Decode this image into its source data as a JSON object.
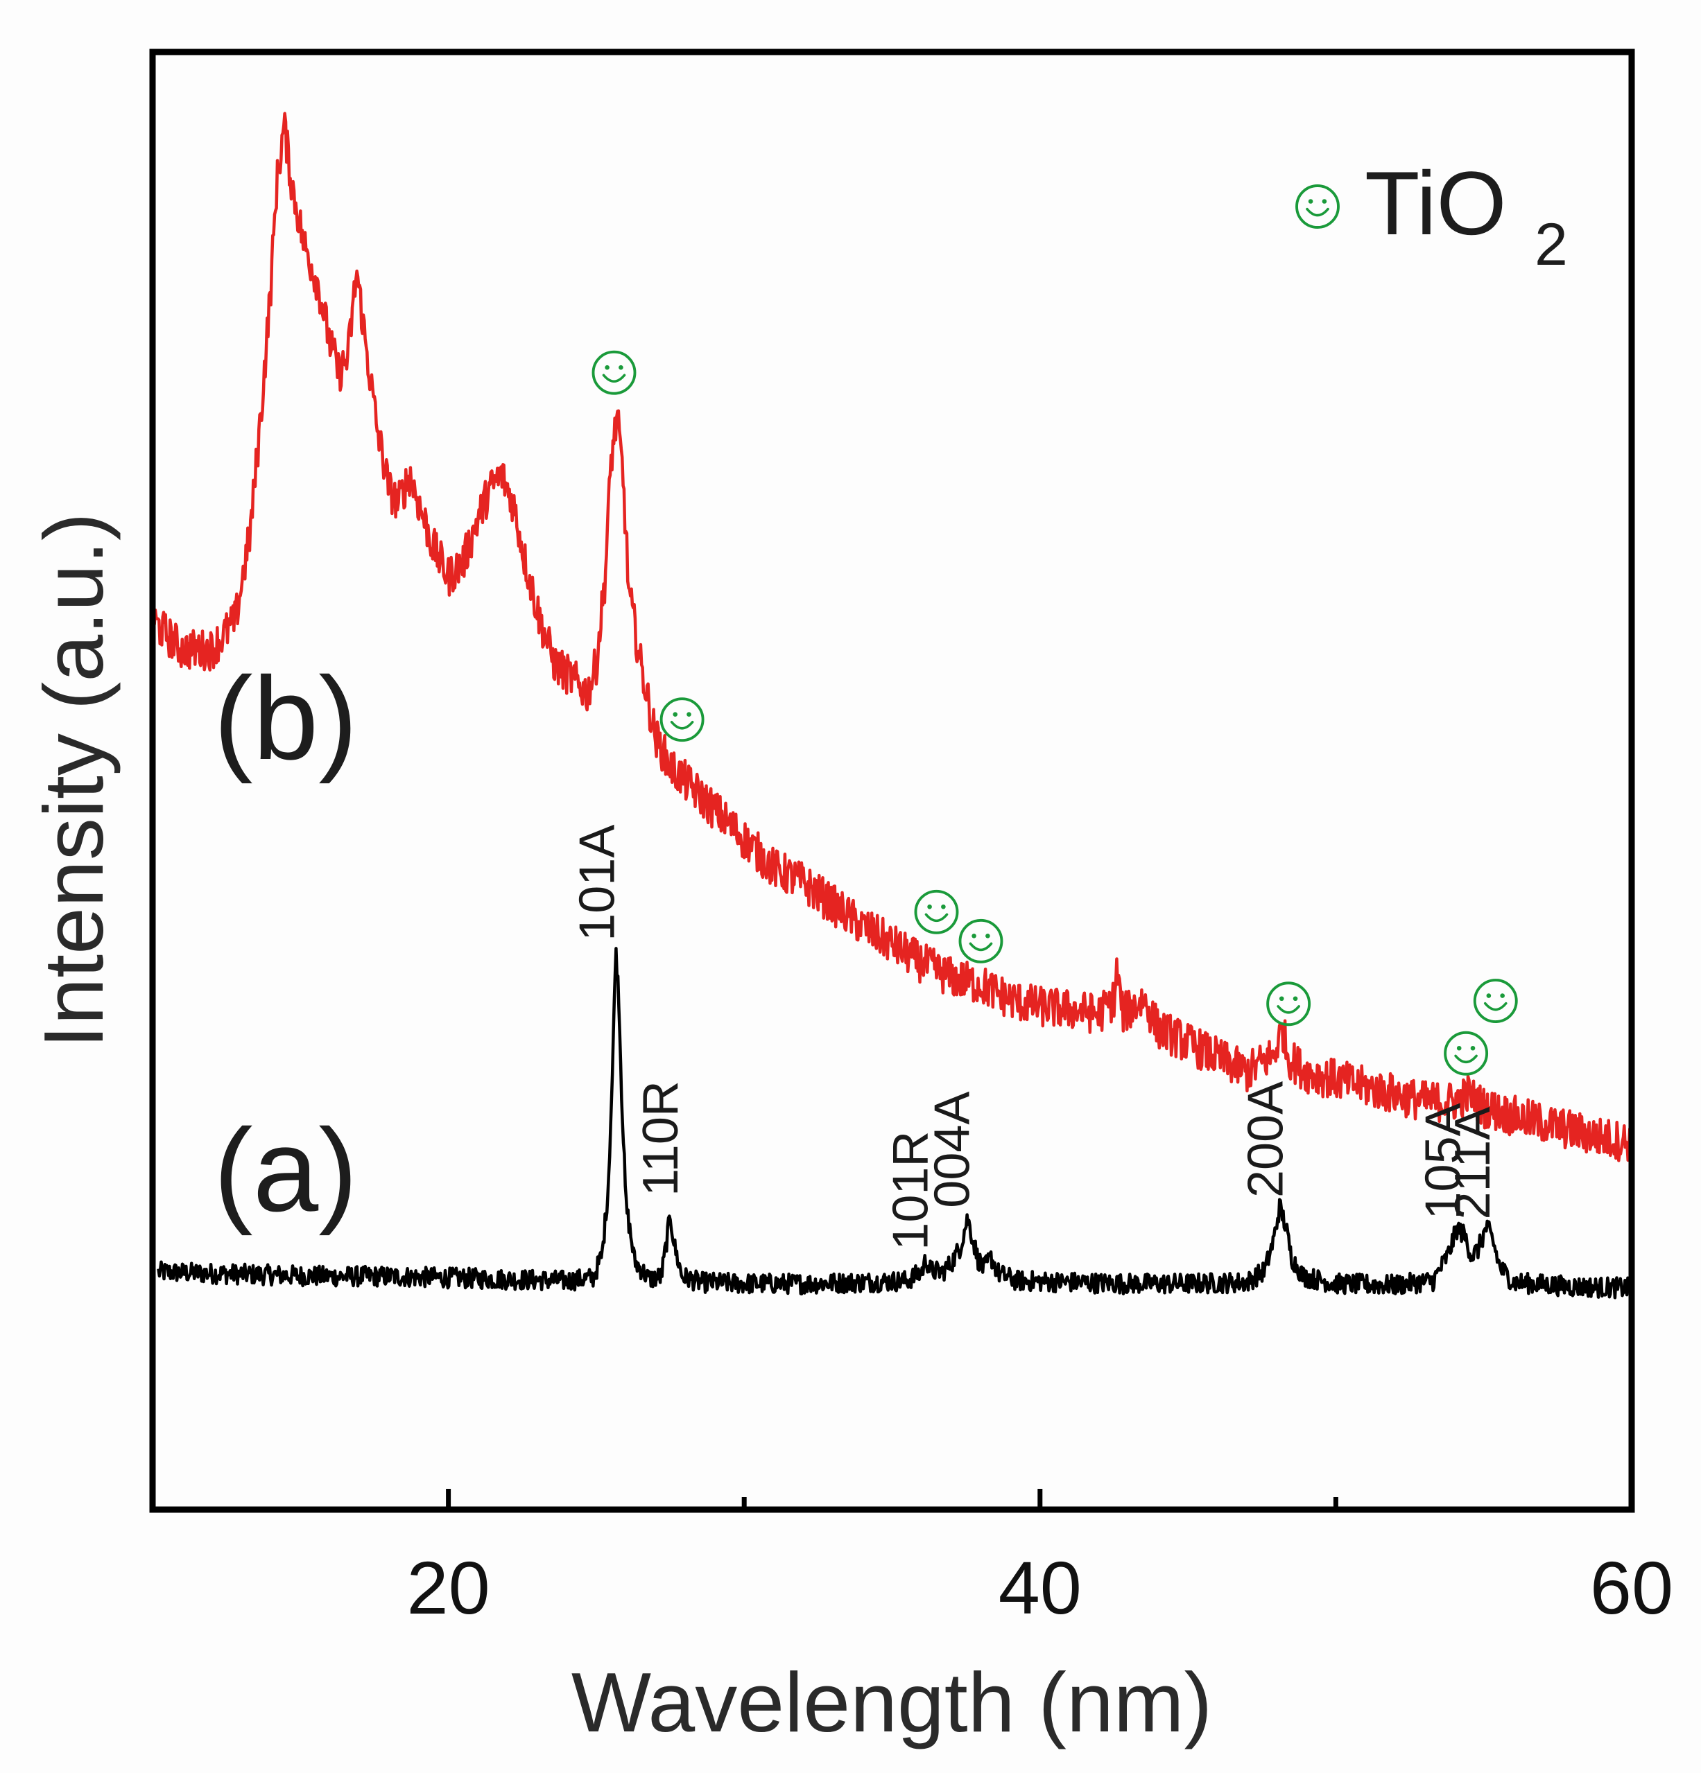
{
  "chart_data": {
    "type": "line",
    "xlabel": "Wavelength (nm)",
    "ylabel": "Intensity (a.u.)",
    "xlim": [
      10,
      60
    ],
    "ylim": [
      0,
      100
    ],
    "xticks": [
      20,
      40,
      60
    ],
    "xticks_minor": [
      30,
      50
    ],
    "yticks": [],
    "grid": false,
    "legend": {
      "label": "TiO",
      "subscript": "2",
      "marker": "smiley",
      "color": "#1a9a3a",
      "placement": "top-right"
    },
    "series": [
      {
        "name": "(a)",
        "color": "#000000",
        "noise": 0.7,
        "points": [
          [
            10.2,
            16.3
          ],
          [
            12,
            16.2
          ],
          [
            14,
            16.1
          ],
          [
            16,
            16.0
          ],
          [
            18,
            16.0
          ],
          [
            20,
            15.9
          ],
          [
            22,
            15.8
          ],
          [
            24,
            15.7
          ],
          [
            24.9,
            15.9
          ],
          [
            25.2,
            17.5
          ],
          [
            25.4,
            22
          ],
          [
            25.55,
            30
          ],
          [
            25.65,
            38.5
          ],
          [
            25.75,
            36
          ],
          [
            25.85,
            29
          ],
          [
            26.0,
            21
          ],
          [
            26.3,
            17
          ],
          [
            26.8,
            15.8
          ],
          [
            27.2,
            16
          ],
          [
            27.35,
            18
          ],
          [
            27.5,
            20.2
          ],
          [
            27.65,
            18
          ],
          [
            27.9,
            16
          ],
          [
            28.5,
            15.6
          ],
          [
            30,
            15.5
          ],
          [
            32,
            15.5
          ],
          [
            34,
            15.6
          ],
          [
            35.5,
            15.7
          ],
          [
            36.0,
            16.3
          ],
          [
            36.15,
            17.2
          ],
          [
            36.3,
            16.4
          ],
          [
            36.7,
            16.3
          ],
          [
            37.0,
            16.9
          ],
          [
            37.3,
            18.0
          ],
          [
            37.55,
            20.0
          ],
          [
            37.7,
            18.8
          ],
          [
            37.9,
            17.2
          ],
          [
            38.1,
            16.5
          ],
          [
            38.35,
            17.3
          ],
          [
            38.6,
            16.2
          ],
          [
            39.2,
            15.7
          ],
          [
            41,
            15.6
          ],
          [
            43,
            15.5
          ],
          [
            45,
            15.5
          ],
          [
            47,
            15.6
          ],
          [
            47.6,
            16.4
          ],
          [
            47.9,
            18.5
          ],
          [
            48.1,
            20.8
          ],
          [
            48.3,
            19.5
          ],
          [
            48.5,
            17.3
          ],
          [
            48.9,
            16.0
          ],
          [
            50,
            15.5
          ],
          [
            52,
            15.4
          ],
          [
            53.3,
            15.7
          ],
          [
            53.8,
            17.5
          ],
          [
            54.1,
            19.3
          ],
          [
            54.35,
            18.8
          ],
          [
            54.6,
            17.4
          ],
          [
            54.8,
            17.8
          ],
          [
            55.1,
            19.4
          ],
          [
            55.3,
            18.5
          ],
          [
            55.55,
            16.6
          ],
          [
            56,
            15.6
          ],
          [
            58,
            15.3
          ],
          [
            59.9,
            15.2
          ]
        ]
      },
      {
        "name": "(b)",
        "color": "#e52421",
        "noise": 1.4,
        "points": [
          [
            10,
            61
          ],
          [
            11,
            59
          ],
          [
            12,
            59
          ],
          [
            12.8,
            61
          ],
          [
            13.3,
            67
          ],
          [
            13.7,
            76
          ],
          [
            14.0,
            84
          ],
          [
            14.2,
            91
          ],
          [
            14.45,
            95
          ],
          [
            14.7,
            91
          ],
          [
            15.1,
            87
          ],
          [
            15.6,
            84
          ],
          [
            16.0,
            80
          ],
          [
            16.3,
            78
          ],
          [
            16.6,
            79
          ],
          [
            16.9,
            85
          ],
          [
            17.2,
            80
          ],
          [
            17.6,
            74
          ],
          [
            18.0,
            70
          ],
          [
            18.3,
            69
          ],
          [
            18.7,
            71
          ],
          [
            19.0,
            69
          ],
          [
            19.5,
            66
          ],
          [
            20.0,
            64
          ],
          [
            20.5,
            65
          ],
          [
            21.0,
            68
          ],
          [
            21.4,
            70
          ],
          [
            21.8,
            71
          ],
          [
            22.2,
            69
          ],
          [
            22.6,
            65
          ],
          [
            23.1,
            61
          ],
          [
            23.6,
            58
          ],
          [
            24.2,
            57
          ],
          [
            24.7,
            56
          ],
          [
            25.0,
            58
          ],
          [
            25.3,
            64
          ],
          [
            25.5,
            72
          ],
          [
            25.7,
            75
          ],
          [
            25.9,
            71
          ],
          [
            26.1,
            63
          ],
          [
            26.5,
            58
          ],
          [
            27.0,
            53
          ],
          [
            27.5,
            51
          ],
          [
            28.0,
            50
          ],
          [
            29,
            48
          ],
          [
            30,
            46
          ],
          [
            31,
            44
          ],
          [
            32,
            43
          ],
          [
            33,
            41.5
          ],
          [
            34,
            40
          ],
          [
            35,
            38.8
          ],
          [
            36,
            37.5
          ],
          [
            37,
            36.5
          ],
          [
            38,
            36
          ],
          [
            39,
            35
          ],
          [
            40,
            34.5
          ],
          [
            41,
            34.3
          ],
          [
            42,
            34
          ],
          [
            42.5,
            35
          ],
          [
            42.6,
            37
          ],
          [
            42.8,
            34
          ],
          [
            43.5,
            35
          ],
          [
            44,
            33
          ],
          [
            45,
            32
          ],
          [
            46,
            31
          ],
          [
            47,
            30
          ],
          [
            47.9,
            31.2
          ],
          [
            48.2,
            33
          ],
          [
            48.4,
            31
          ],
          [
            49,
            30
          ],
          [
            50,
            29.5
          ],
          [
            51,
            29
          ],
          [
            52,
            28.5
          ],
          [
            53,
            28
          ],
          [
            54,
            28
          ],
          [
            54.5,
            28.5
          ],
          [
            55,
            27.6
          ],
          [
            56,
            27
          ],
          [
            57,
            26.5
          ],
          [
            58,
            26
          ],
          [
            59,
            25.5
          ],
          [
            60,
            25.2
          ]
        ]
      }
    ],
    "peak_labels": [
      {
        "text": "101A",
        "x": 25.6,
        "y": 39.0
      },
      {
        "text": "110R",
        "x": 27.75,
        "y": 21.5
      },
      {
        "text": "101R",
        "x": 36.2,
        "y": 17.8
      },
      {
        "text": "004A",
        "x": 37.6,
        "y": 20.7
      },
      {
        "text": "200A",
        "x": 48.2,
        "y": 21.4
      },
      {
        "text": "105A",
        "x": 54.2,
        "y": 19.9
      },
      {
        "text": "211A",
        "x": 55.2,
        "y": 19.9
      }
    ],
    "tio2_markers": [
      {
        "x": 25.6,
        "y": 78.0
      },
      {
        "x": 27.9,
        "y": 54.2
      },
      {
        "x": 36.5,
        "y": 41.0
      },
      {
        "x": 38.0,
        "y": 39.0
      },
      {
        "x": 48.4,
        "y": 34.7
      },
      {
        "x": 54.4,
        "y": 31.3
      },
      {
        "x": 55.4,
        "y": 34.9
      }
    ],
    "series_labels": [
      {
        "text": "(b)",
        "x": 14.5,
        "y": 51.5
      },
      {
        "text": "(a)",
        "x": 14.5,
        "y": 20.5
      }
    ]
  }
}
